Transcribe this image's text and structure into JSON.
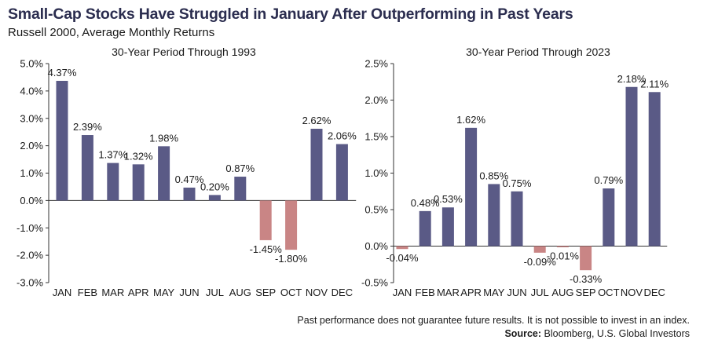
{
  "header": {
    "title": "Small-Cap Stocks Have Struggled in January After Outperforming in Past Years",
    "subtitle": "Russell 2000, Average Monthly Returns"
  },
  "footer": {
    "disclaimer": "Past performance does not guarantee future results. It is not possible to invest in an index.",
    "source_label": "Source:",
    "source_text": "Bloomberg, U.S. Global Investors"
  },
  "colors": {
    "positive": "#5a5a86",
    "negative": "#c98585",
    "title": "#2b2d4f"
  },
  "chart_data": [
    {
      "type": "bar",
      "title": "30-Year Period Through 1993",
      "xlabel": "",
      "ylabel": "",
      "categories": [
        "JAN",
        "FEB",
        "MAR",
        "APR",
        "MAY",
        "JUN",
        "JUL",
        "AUG",
        "SEP",
        "OCT",
        "NOV",
        "DEC"
      ],
      "values": [
        4.37,
        2.39,
        1.37,
        1.32,
        1.98,
        0.47,
        0.2,
        0.87,
        -1.45,
        -1.8,
        2.62,
        2.06
      ],
      "value_labels": [
        "4.37%",
        "2.39%",
        "1.37%",
        "1.32%",
        "1.98%",
        "0.47%",
        "0.20%",
        "0.87%",
        "-1.45%",
        "-1.80%",
        "2.62%",
        "2.06%"
      ],
      "ylim": [
        -3.0,
        5.0
      ],
      "yticks": [
        -3.0,
        -2.0,
        -1.0,
        0.0,
        1.0,
        2.0,
        3.0,
        4.0,
        5.0
      ],
      "ytick_labels": [
        "-3.0%",
        "-2.0%",
        "-1.0%",
        "0.0%",
        "1.0%",
        "2.0%",
        "3.0%",
        "4.0%",
        "5.0%"
      ],
      "grid": false,
      "legend": "none"
    },
    {
      "type": "bar",
      "title": "30-Year Period Through 2023",
      "xlabel": "",
      "ylabel": "",
      "categories": [
        "JAN",
        "FEB",
        "MAR",
        "APR",
        "MAY",
        "JUN",
        "JUL",
        "AUG",
        "SEP",
        "OCT",
        "NOV",
        "DEC"
      ],
      "values": [
        -0.04,
        0.48,
        0.53,
        1.62,
        0.85,
        0.75,
        -0.09,
        -0.01,
        -0.33,
        0.79,
        2.18,
        2.11
      ],
      "value_labels": [
        "-0.04%",
        "0.48%",
        "0.53%",
        "1.62%",
        "0.85%",
        "0.75%",
        "-0.09%",
        "-0.01%",
        "-0.33%",
        "0.79%",
        "2.18%",
        "2.11%"
      ],
      "ylim": [
        -0.5,
        2.5
      ],
      "yticks": [
        -0.5,
        0.0,
        0.5,
        1.0,
        1.5,
        2.0,
        2.5
      ],
      "ytick_labels": [
        "-0.5%",
        "0.0%",
        "0.5%",
        "1.0%",
        "1.5%",
        "2.0%",
        "2.5%"
      ],
      "grid": false,
      "legend": "none"
    }
  ]
}
